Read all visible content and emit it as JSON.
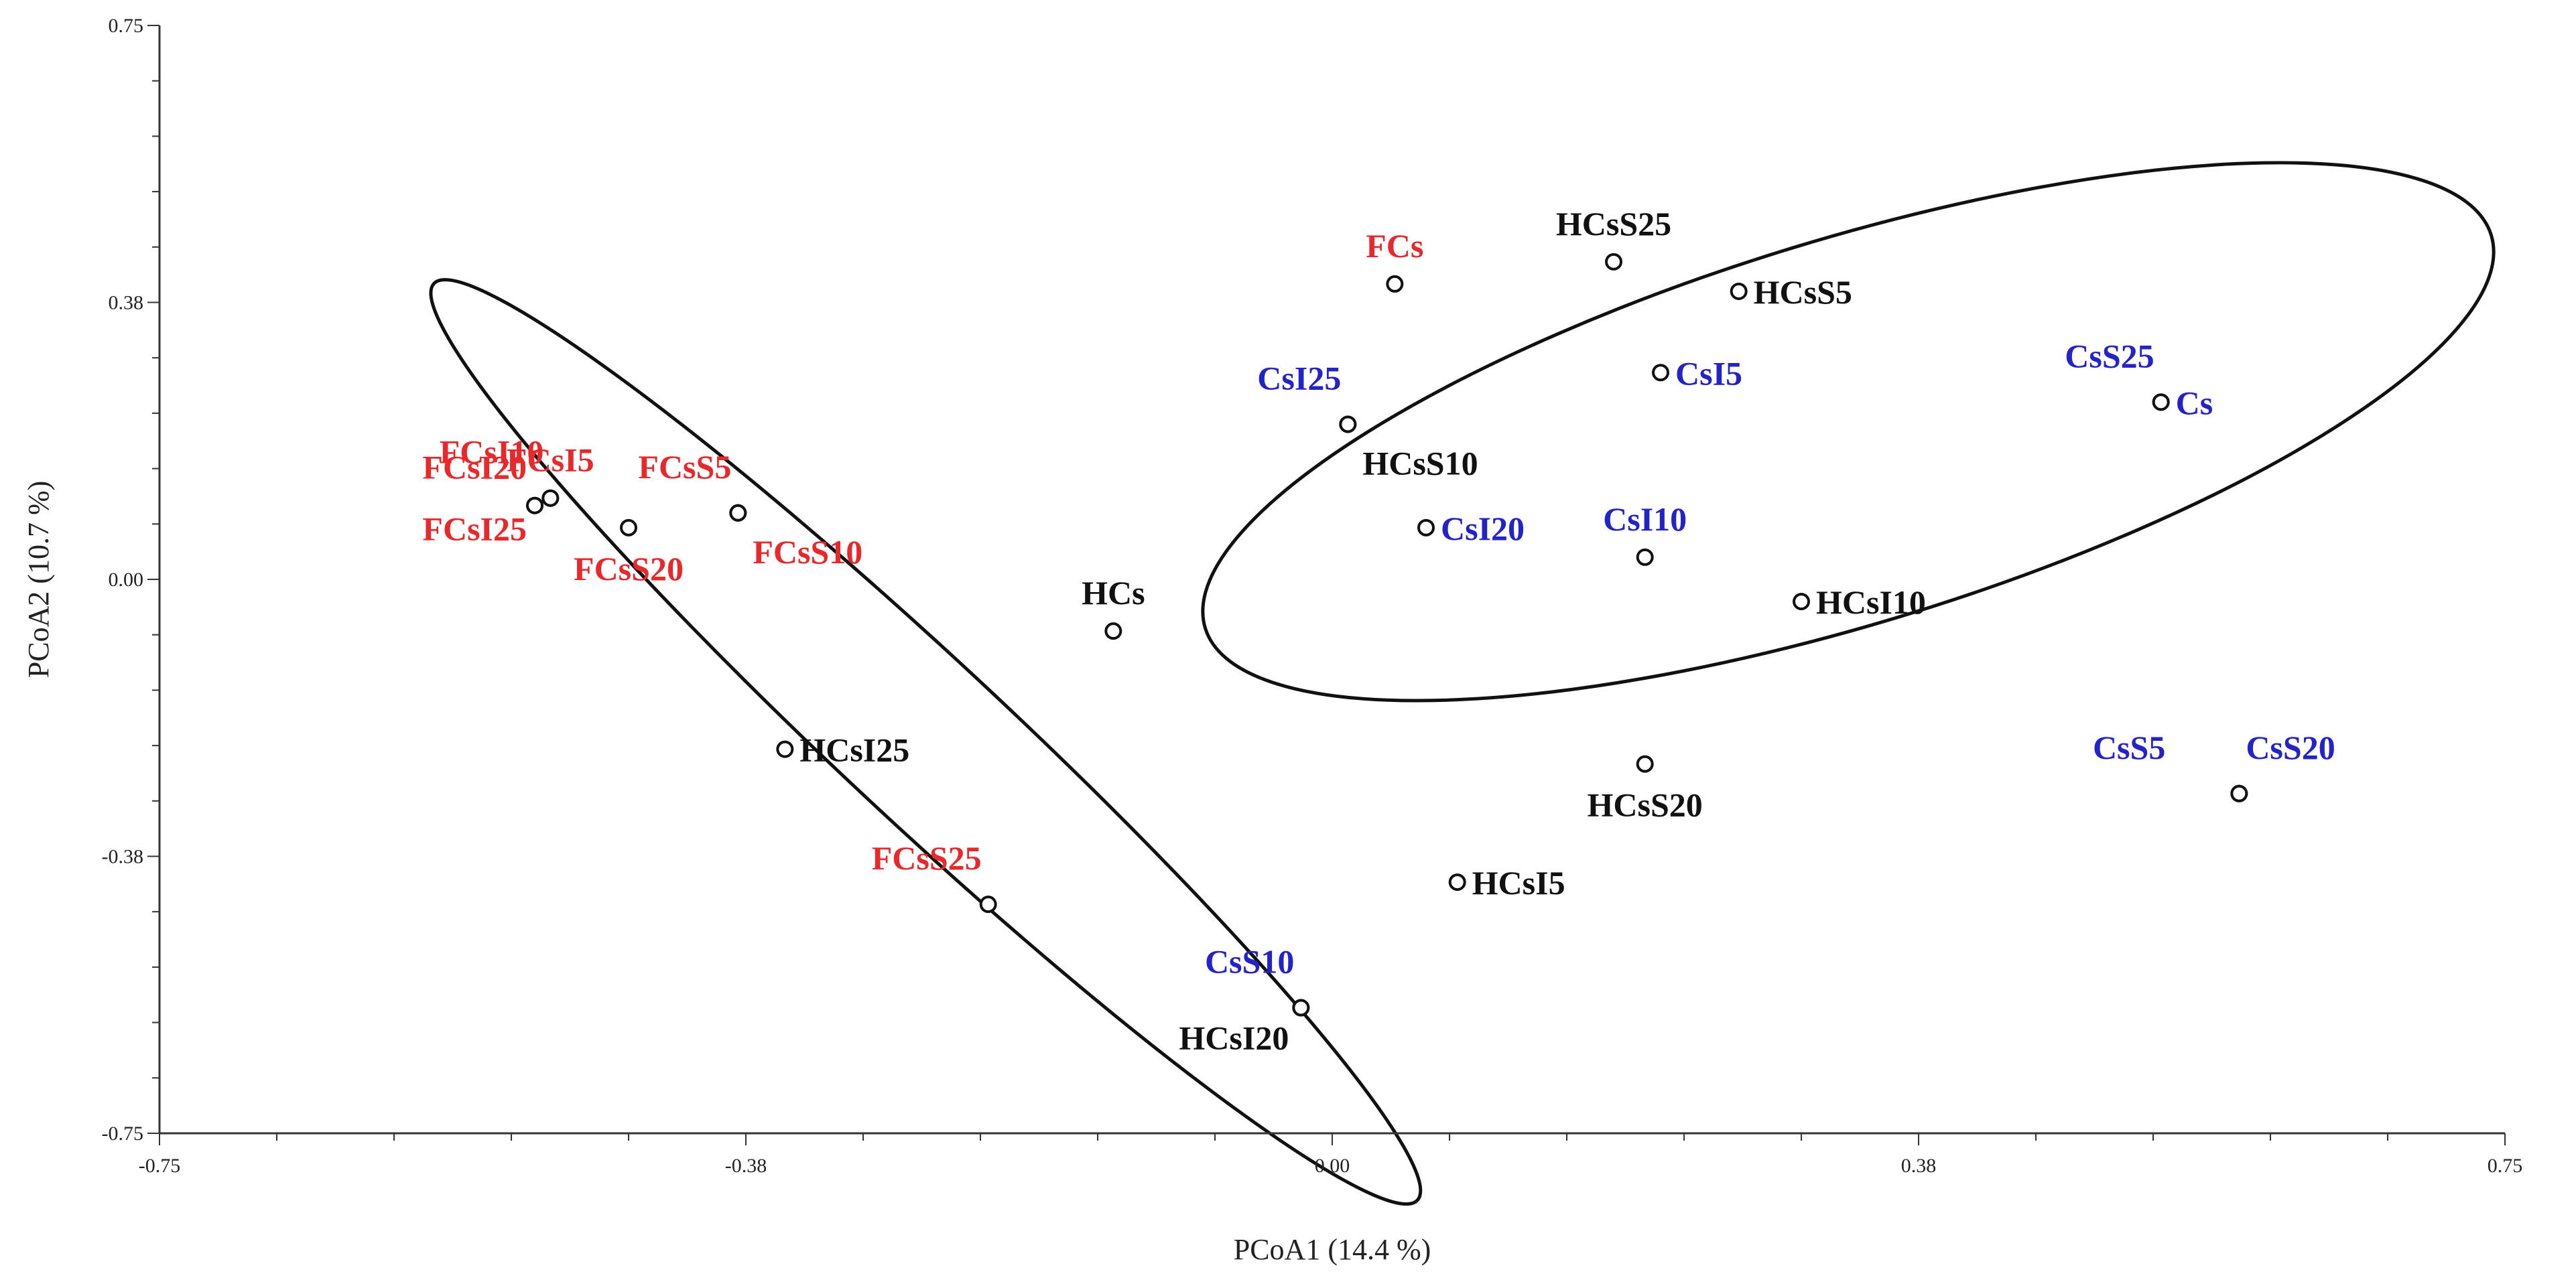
{
  "chart_data": {
    "type": "scatter",
    "title": "",
    "xlabel": "PCoA1 (14.4 %)",
    "ylabel": "PCoA2 (10.7 %)",
    "xlim": [
      -0.75,
      0.75
    ],
    "ylim": [
      -0.75,
      0.75
    ],
    "xticks": [
      "-0.75",
      "-0.38",
      "0.00",
      "0.38",
      "0.75"
    ],
    "yticks": [
      "0.75",
      "0.38",
      "0.00",
      "-0.38",
      "-0.75"
    ],
    "grid": false,
    "group_colors": {
      "red": "#e8282a",
      "black": "#111111",
      "blue": "#2323c8"
    },
    "points": [
      {
        "label": "FCs",
        "x": 0.04,
        "y": 0.4,
        "color": "red",
        "anchor": "above"
      },
      {
        "label": "FCsI10",
        "x": -0.5,
        "y": 0.11,
        "color": "red",
        "anchor": "above-left"
      },
      {
        "label": "FCsI5",
        "x": -0.5,
        "y": 0.11,
        "color": "red",
        "anchor": "above"
      },
      {
        "label": "FCsI20",
        "x": -0.51,
        "y": 0.1,
        "color": "red",
        "anchor": "left-upper"
      },
      {
        "label": "FCsI25",
        "x": -0.51,
        "y": 0.1,
        "color": "red",
        "anchor": "left-lower"
      },
      {
        "label": "FCsS5",
        "x": -0.38,
        "y": 0.09,
        "color": "red",
        "anchor": "above-left"
      },
      {
        "label": "FCsS10",
        "x": -0.38,
        "y": 0.09,
        "color": "red",
        "anchor": "below-right"
      },
      {
        "label": "FCsS20",
        "x": -0.45,
        "y": 0.07,
        "color": "red",
        "anchor": "below"
      },
      {
        "label": "FCsS25",
        "x": -0.22,
        "y": -0.44,
        "color": "red",
        "anchor": "above-left"
      },
      {
        "label": "HCs",
        "x": -0.14,
        "y": -0.07,
        "color": "black",
        "anchor": "above"
      },
      {
        "label": "HCsI25",
        "x": -0.35,
        "y": -0.23,
        "color": "black",
        "anchor": "right"
      },
      {
        "label": "HCsI20",
        "x": -0.02,
        "y": -0.58,
        "color": "black",
        "anchor": "below-left"
      },
      {
        "label": "HCsI5",
        "x": 0.08,
        "y": -0.41,
        "color": "black",
        "anchor": "right"
      },
      {
        "label": "HCsI10",
        "x": 0.3,
        "y": -0.03,
        "color": "black",
        "anchor": "right"
      },
      {
        "label": "HCsS25",
        "x": 0.18,
        "y": 0.43,
        "color": "black",
        "anchor": "above"
      },
      {
        "label": "HCsS5",
        "x": 0.26,
        "y": 0.39,
        "color": "black",
        "anchor": "right"
      },
      {
        "label": "HCsS10",
        "x": 0.01,
        "y": 0.21,
        "color": "black",
        "anchor": "below-right"
      },
      {
        "label": "HCsS20",
        "x": 0.2,
        "y": -0.25,
        "color": "black",
        "anchor": "below"
      },
      {
        "label": "CsI25",
        "x": 0.01,
        "y": 0.21,
        "color": "blue",
        "anchor": "above-left"
      },
      {
        "label": "CsI5",
        "x": 0.21,
        "y": 0.28,
        "color": "blue",
        "anchor": "right"
      },
      {
        "label": "CsI20",
        "x": 0.06,
        "y": 0.07,
        "color": "blue",
        "anchor": "right"
      },
      {
        "label": "CsI10",
        "x": 0.2,
        "y": 0.03,
        "color": "blue",
        "anchor": "above"
      },
      {
        "label": "CsS25",
        "x": 0.53,
        "y": 0.24,
        "color": "blue",
        "anchor": "above-left"
      },
      {
        "label": "Cs",
        "x": 0.53,
        "y": 0.24,
        "color": "blue",
        "anchor": "right"
      },
      {
        "label": "CsS5",
        "x": 0.58,
        "y": -0.29,
        "color": "blue",
        "anchor": "above-left-far"
      },
      {
        "label": "CsS20",
        "x": 0.58,
        "y": -0.29,
        "color": "blue",
        "anchor": "above-right"
      },
      {
        "label": "CsS10",
        "x": -0.02,
        "y": -0.58,
        "color": "blue",
        "anchor": "above-left"
      }
    ],
    "ellipses": [
      {
        "name": "left-cluster",
        "center": [
          -0.26,
          -0.22
        ],
        "semi_major": 0.43,
        "semi_minor": 0.11,
        "rotation_deg": 43
      },
      {
        "name": "right-cluster",
        "center": [
          0.33,
          0.2
        ],
        "semi_major": 0.43,
        "semi_minor": 0.26,
        "rotation_deg": -17
      }
    ]
  }
}
